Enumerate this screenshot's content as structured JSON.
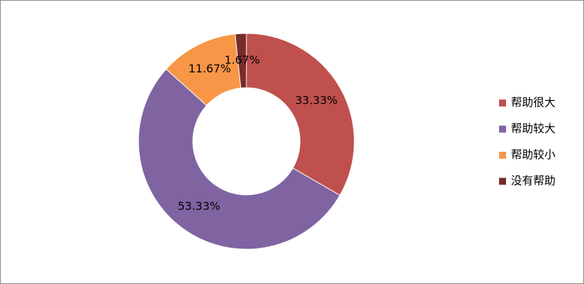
{
  "chart_data": {
    "type": "doughnut",
    "categories": [
      "帮助很大",
      "帮助较大",
      "帮助较小",
      "没有帮助"
    ],
    "values": [
      33.33,
      53.33,
      11.67,
      1.67
    ],
    "value_labels": [
      "33.33%",
      "53.33%",
      "11.67%",
      "1.67%"
    ],
    "colors": [
      "#c0504d",
      "#8064a2",
      "#f79646",
      "#772c2a"
    ],
    "legend": "right"
  }
}
